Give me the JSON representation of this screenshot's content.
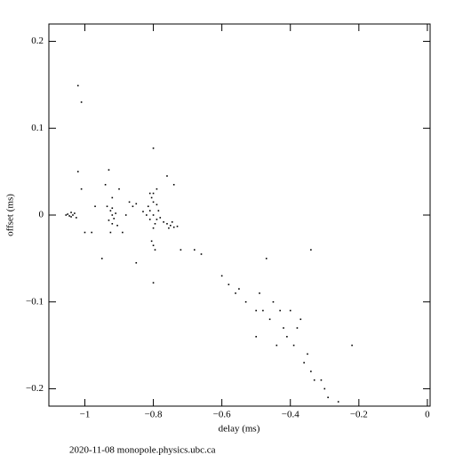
{
  "chart_data": {
    "type": "scatter",
    "color": "#000000",
    "x_label": "delay (ms)",
    "y_label": "offset (ms)",
    "xlim": [
      -1.105,
      0.008
    ],
    "ylim": [
      -0.22,
      0.22
    ],
    "xticks": [
      {
        "value": -1,
        "label": "−1"
      },
      {
        "value": -0.8,
        "label": "−0.8"
      },
      {
        "value": -0.6,
        "label": "−0.6"
      },
      {
        "value": -0.4,
        "label": "−0.4"
      },
      {
        "value": -0.2,
        "label": "−0.2"
      },
      0
    ],
    "yticks": [
      0.2,
      0.1,
      0,
      {
        "value": -0.1,
        "label": "−0.1"
      },
      {
        "value": -0.2,
        "label": "−0.2"
      }
    ],
    "x": [
      -1.05,
      -1.04,
      -1.035,
      -1.045,
      -1.03,
      -1.04,
      -1.025,
      -1.055,
      -0.92,
      -0.925,
      -0.915,
      -0.92,
      -0.93,
      -0.91,
      -0.92,
      -0.935,
      -0.905,
      -0.92,
      -0.925,
      -0.9,
      -0.94,
      -0.8,
      -0.81,
      -0.79,
      -0.8,
      -0.805,
      -0.795,
      -0.815,
      -0.785,
      -0.8,
      -0.81,
      -0.79,
      -0.82,
      -0.78,
      -0.8,
      -0.83,
      -0.77,
      -0.76,
      -0.75,
      -0.74,
      -0.73,
      -0.745,
      -0.755,
      -0.8,
      -0.795,
      -0.805,
      -0.79,
      -0.81,
      -0.8,
      -0.8,
      -0.76,
      -0.74,
      -0.85,
      -0.86,
      -0.87,
      -0.88,
      -0.89,
      -0.97,
      -0.98,
      -1.0,
      -1.01,
      -1.02,
      -0.93,
      -0.95,
      -0.85,
      -0.72,
      -1.02,
      -1.01,
      -0.68,
      -0.66,
      -0.6,
      -0.58,
      -0.56,
      -0.55,
      -0.53,
      -0.5,
      -0.49,
      -0.48,
      -0.47,
      -0.46,
      -0.45,
      -0.43,
      -0.42,
      -0.41,
      -0.4,
      -0.39,
      -0.38,
      -0.36,
      -0.35,
      -0.34,
      -0.33,
      -0.31,
      -0.3,
      -0.29,
      -0.26,
      -0.22,
      -0.34,
      -0.5,
      -0.44,
      -0.37
    ],
    "y": [
      0.001,
      -0.002,
      0.0,
      -0.001,
      0.002,
      0.003,
      -0.003,
      0.0,
      0.0,
      0.005,
      -0.004,
      0.008,
      -0.006,
      0.002,
      -0.01,
      0.01,
      -0.012,
      0.02,
      -0.02,
      0.03,
      0.035,
      0.0,
      0.005,
      -0.005,
      0.015,
      0.02,
      -0.01,
      0.01,
      0.005,
      -0.015,
      -0.005,
      0.012,
      0.0,
      -0.003,
      0.025,
      0.004,
      -0.008,
      -0.01,
      -0.012,
      -0.014,
      -0.013,
      -0.008,
      -0.015,
      -0.035,
      -0.04,
      -0.03,
      0.03,
      0.025,
      0.077,
      -0.078,
      0.045,
      0.035,
      0.013,
      0.01,
      0.015,
      0.0,
      -0.02,
      0.01,
      -0.02,
      -0.02,
      0.03,
      0.05,
      0.052,
      -0.05,
      -0.055,
      -0.04,
      0.149,
      0.13,
      -0.04,
      -0.045,
      -0.07,
      -0.08,
      -0.09,
      -0.085,
      -0.1,
      -0.11,
      -0.09,
      -0.11,
      -0.05,
      -0.12,
      -0.1,
      -0.11,
      -0.13,
      -0.14,
      -0.11,
      -0.15,
      -0.13,
      -0.17,
      -0.16,
      -0.18,
      -0.19,
      -0.19,
      -0.2,
      -0.21,
      -0.215,
      -0.15,
      -0.04,
      -0.14,
      -0.15,
      -0.12
    ]
  },
  "footer": "2020-11-08 monopole.physics.ubc.ca"
}
